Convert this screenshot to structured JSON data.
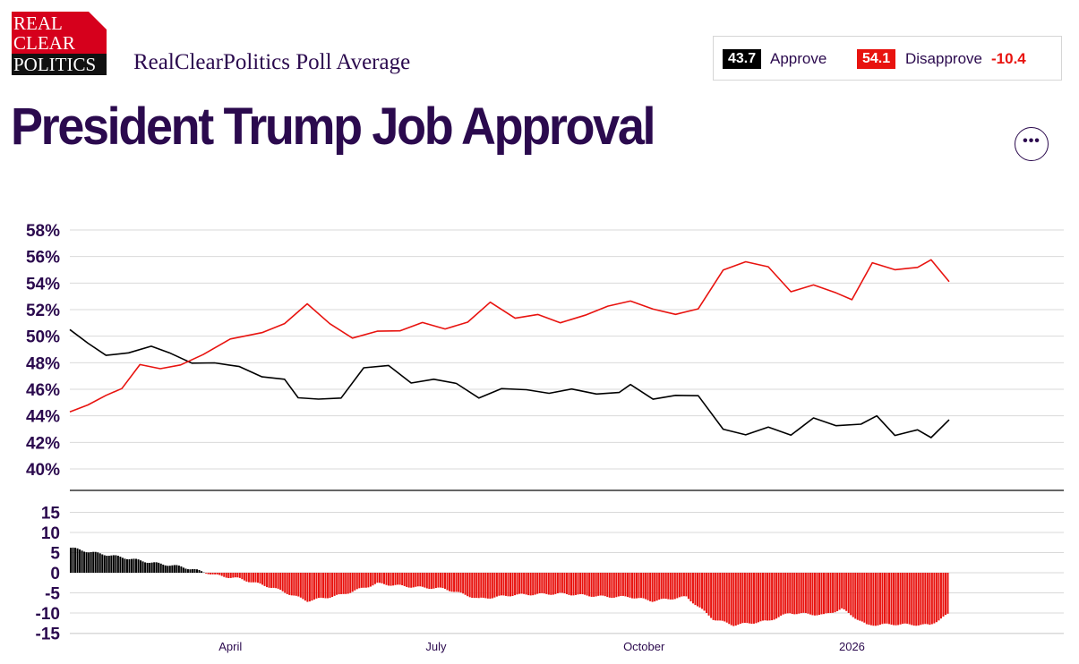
{
  "header": {
    "logo_text": [
      "REAL",
      "CLEAR",
      "POLITICS"
    ],
    "subtitle": "RealClearPolitics Poll Average",
    "title": "President Trump Job Approval",
    "more_icon": "ellipsis-icon"
  },
  "legend": {
    "approve_value": "43.7",
    "approve_label": "Approve",
    "disapprove_value": "54.1",
    "disapprove_label": "Disapprove",
    "spread": "-10.4"
  },
  "colors": {
    "approve": "#000000",
    "disapprove": "#e8130f",
    "text": "#2b0a4e",
    "grid": "#d9d9d9"
  },
  "chart_data": [
    {
      "type": "line",
      "x_start": "2025-01-20",
      "x_end": "2026-02-13",
      "series": [
        {
          "name": "Approve",
          "color": "#000000",
          "x": [
            "2025-01-20",
            "2025-01-28",
            "2025-02-05",
            "2025-02-15",
            "2025-02-25",
            "2025-03-05",
            "2025-03-15",
            "2025-03-25",
            "2025-04-05",
            "2025-04-15",
            "2025-04-25",
            "2025-05-01",
            "2025-05-10",
            "2025-05-20",
            "2025-05-30",
            "2025-06-10",
            "2025-06-20",
            "2025-06-30",
            "2025-07-10",
            "2025-07-20",
            "2025-07-30",
            "2025-08-10",
            "2025-08-20",
            "2025-08-30",
            "2025-09-10",
            "2025-09-20",
            "2025-09-25",
            "2025-10-05",
            "2025-10-15",
            "2025-10-25",
            "2025-11-05",
            "2025-11-15",
            "2025-11-25",
            "2025-12-05",
            "2025-12-15",
            "2025-12-25",
            "2026-01-05",
            "2026-01-12",
            "2026-01-20",
            "2026-01-30",
            "2026-02-05",
            "2026-02-13"
          ],
          "y": [
            50.5,
            49.5,
            48.6,
            48.8,
            49.3,
            48.8,
            48.0,
            48.0,
            47.7,
            46.9,
            46.7,
            45.3,
            45.2,
            45.3,
            47.6,
            47.8,
            46.5,
            46.8,
            46.5,
            45.4,
            46.1,
            46.0,
            45.7,
            46.0,
            45.6,
            45.7,
            46.3,
            45.2,
            45.5,
            45.5,
            43.0,
            42.6,
            43.2,
            42.6,
            43.9,
            43.3,
            43.4,
            44.0,
            42.5,
            42.9,
            42.3,
            43.7
          ]
        },
        {
          "name": "Disapprove",
          "color": "#e8130f",
          "x": [
            "2025-01-20",
            "2025-01-28",
            "2025-02-05",
            "2025-02-12",
            "2025-02-20",
            "2025-03-01",
            "2025-03-10",
            "2025-03-20",
            "2025-04-01",
            "2025-04-15",
            "2025-04-25",
            "2025-05-05",
            "2025-05-15",
            "2025-05-25",
            "2025-06-05",
            "2025-06-15",
            "2025-06-25",
            "2025-07-05",
            "2025-07-15",
            "2025-07-25",
            "2025-08-05",
            "2025-08-15",
            "2025-08-25",
            "2025-09-05",
            "2025-09-15",
            "2025-09-25",
            "2025-10-05",
            "2025-10-15",
            "2025-10-25",
            "2025-11-05",
            "2025-11-15",
            "2025-11-25",
            "2025-12-05",
            "2025-12-15",
            "2025-12-25",
            "2026-01-01",
            "2026-01-10",
            "2026-01-20",
            "2026-01-30",
            "2026-02-05",
            "2026-02-13"
          ],
          "y": [
            44.3,
            44.8,
            45.5,
            46.0,
            47.8,
            47.5,
            47.8,
            48.6,
            49.8,
            50.3,
            51.0,
            52.5,
            51.0,
            49.9,
            50.4,
            50.4,
            51.0,
            50.5,
            51.0,
            52.5,
            51.3,
            51.6,
            51.0,
            51.6,
            52.3,
            52.7,
            52.1,
            51.7,
            52.1,
            55.0,
            55.6,
            55.2,
            53.3,
            53.8,
            53.2,
            52.7,
            55.5,
            55.0,
            55.2,
            55.8,
            54.1
          ]
        }
      ],
      "y_ticks": [
        "58%",
        "56%",
        "54%",
        "52%",
        "50%",
        "48%",
        "46%",
        "44%",
        "42%",
        "40%"
      ],
      "ylim": [
        40,
        58
      ],
      "grid": true
    },
    {
      "type": "bar",
      "name": "Spread",
      "x_ticks": [
        "April",
        "July",
        "October",
        "2026"
      ],
      "x_tick_dates": [
        "2025-04-01",
        "2025-07-01",
        "2025-10-01",
        "2026-01-01"
      ],
      "points": [
        [
          "2025-01-20",
          6.2
        ],
        [
          "2025-01-28",
          5.2
        ],
        [
          "2025-02-10",
          4.0
        ],
        [
          "2025-02-25",
          2.5
        ],
        [
          "2025-03-10",
          1.5
        ],
        [
          "2025-03-20",
          0.2
        ],
        [
          "2025-03-25",
          -0.6
        ],
        [
          "2025-04-05",
          -1.5
        ],
        [
          "2025-04-20",
          -3.8
        ],
        [
          "2025-05-05",
          -7.0
        ],
        [
          "2025-05-20",
          -5.5
        ],
        [
          "2025-06-05",
          -2.7
        ],
        [
          "2025-06-20",
          -3.5
        ],
        [
          "2025-07-05",
          -4.0
        ],
        [
          "2025-07-20",
          -6.5
        ],
        [
          "2025-08-05",
          -5.5
        ],
        [
          "2025-08-25",
          -5.2
        ],
        [
          "2025-09-15",
          -6.0
        ],
        [
          "2025-09-25",
          -6.0
        ],
        [
          "2025-10-05",
          -7.0
        ],
        [
          "2025-10-20",
          -6.0
        ],
        [
          "2025-11-01",
          -11.5
        ],
        [
          "2025-11-10",
          -13.0
        ],
        [
          "2025-11-25",
          -12.0
        ],
        [
          "2025-12-05",
          -10.0
        ],
        [
          "2025-12-20",
          -10.5
        ],
        [
          "2025-12-28",
          -9.0
        ],
        [
          "2026-01-08",
          -13.0
        ],
        [
          "2026-01-20",
          -12.8
        ],
        [
          "2026-02-05",
          -13.0
        ],
        [
          "2026-02-13",
          -10.4
        ]
      ],
      "y_ticks": [
        "15",
        "10",
        "5",
        "0",
        "-5",
        "-10",
        "-15"
      ],
      "ylim": [
        -15,
        15
      ]
    }
  ]
}
